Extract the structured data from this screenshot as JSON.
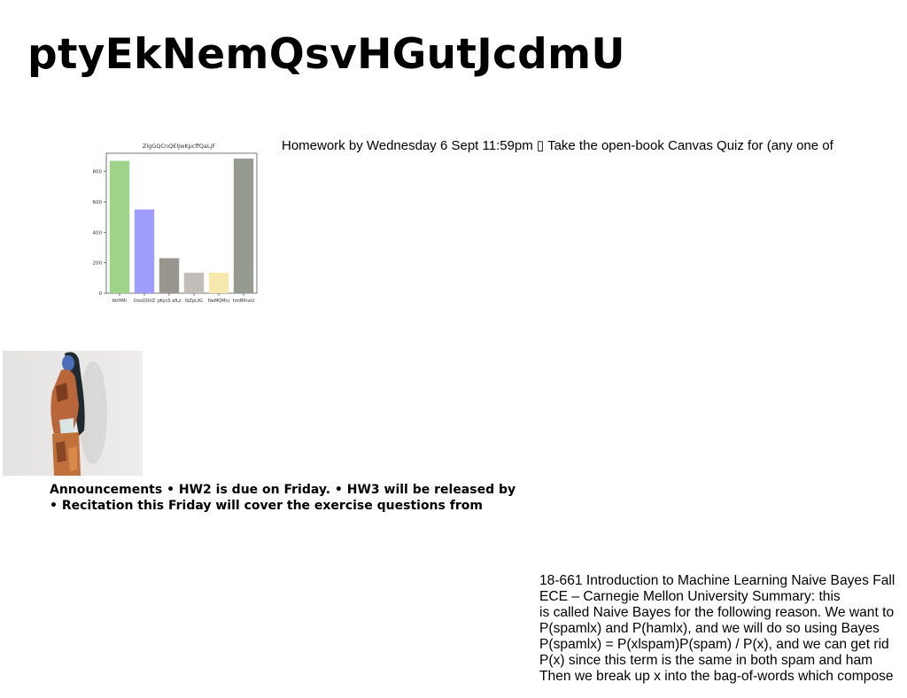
{
  "title": "ptyEkNemQsvHGutJcdmU",
  "homework_text": "Homework by Wednesday 6 Sept 11:59pm ▯ Take the open-book Canvas Quiz for (any one of",
  "announcements": [
    "Announcements • HW2 is due on Friday. • HW3 will be released by",
    "• Recitation this Friday will cover the exercise questions from"
  ],
  "summary_lines": [
    "18-661 Introduction to Machine Learning Naive Bayes Fall",
    "ECE – Carnegie Mellon University Summary: this",
    "is called Naive Bayes for the following reason. We want to",
    "P(spamlx) and P(hamlx), and we will do so using Bayes",
    "P(spamlx) = P(xlspam)P(spam) / P(x), and we can get rid",
    "P(x) since this term is the same in both spam and ham",
    "Then we break up x into the bag-of-words which compose"
  ],
  "photo": {
    "description": ""
  },
  "chart_data": {
    "type": "bar",
    "title": "ZlgGQCnQElJwKpcffQaLjF",
    "categories": [
      "btlHMi",
      "OxoOOVZ",
      "pKycS afLz",
      "lbZpUlG",
      "NeMQMnj",
      "hmBRnsU"
    ],
    "values": [
      870,
      550,
      230,
      135,
      135,
      885
    ],
    "colors": [
      "#9dd48a",
      "#9e9cff",
      "#99968f",
      "#c2bdb8",
      "#f7e8ae",
      "#959b8e"
    ],
    "xlabel": "",
    "ylabel": "",
    "ylim": [
      0,
      920
    ],
    "yticks": [
      0,
      200,
      400,
      600,
      800
    ],
    "grid": false
  }
}
